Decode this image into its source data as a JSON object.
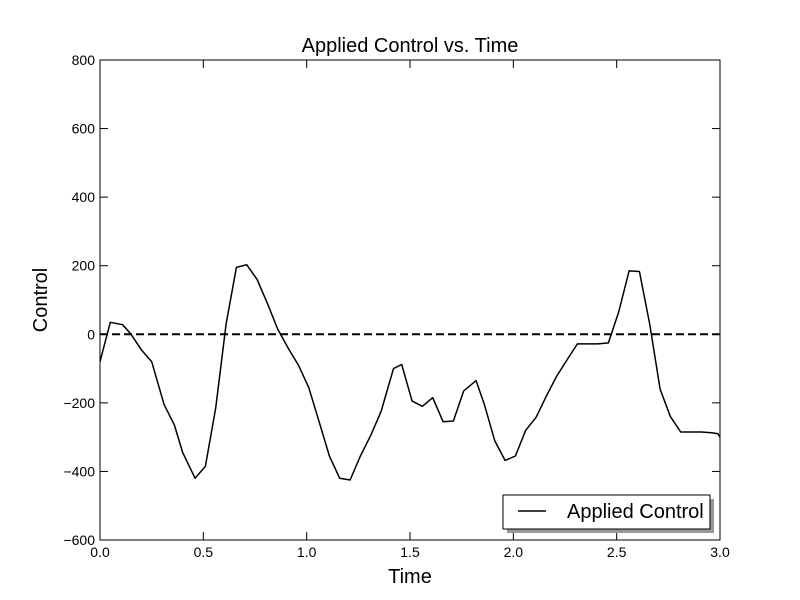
{
  "chart_data": {
    "type": "line",
    "title": "Applied Control vs. Time",
    "xlabel": "Time",
    "ylabel": "Control",
    "xlim": [
      0.0,
      3.0
    ],
    "ylim": [
      -600,
      800
    ],
    "grid": false,
    "legend_position": "lower-right",
    "x_ticks": [
      "0.0",
      "0.5",
      "1.0",
      "1.5",
      "2.0",
      "2.5",
      "3.0"
    ],
    "y_ticks": [
      "800",
      "600",
      "400",
      "200",
      "0",
      "−200",
      "−400",
      "−600"
    ],
    "reference_line": {
      "y": 0,
      "style": "dashed",
      "color": "#000000"
    },
    "series": [
      {
        "name": "Applied Control",
        "color": "#000000",
        "x": [
          0.0,
          0.05,
          0.11,
          0.15,
          0.2,
          0.25,
          0.31,
          0.36,
          0.4,
          0.46,
          0.51,
          0.56,
          0.61,
          0.66,
          0.71,
          0.76,
          0.81,
          0.86,
          0.91,
          0.96,
          1.01,
          1.06,
          1.11,
          1.16,
          1.21,
          1.26,
          1.31,
          1.36,
          1.42,
          1.46,
          1.51,
          1.56,
          1.61,
          1.66,
          1.71,
          1.76,
          1.82,
          1.86,
          1.91,
          1.96,
          2.01,
          2.06,
          2.11,
          2.16,
          2.21,
          2.27,
          2.31,
          2.36,
          2.41,
          2.46,
          2.51,
          2.56,
          2.61,
          2.66,
          2.71,
          2.76,
          2.81,
          2.86,
          2.91,
          2.96,
          2.99,
          3.0
        ],
        "y": [
          -80,
          35,
          28,
          0,
          -45,
          -80,
          -205,
          -265,
          -345,
          -420,
          -385,
          -215,
          30,
          195,
          203,
          160,
          90,
          15,
          -40,
          -90,
          -155,
          -255,
          -355,
          -420,
          -425,
          -355,
          -295,
          -225,
          -100,
          -88,
          -195,
          -210,
          -185,
          -255,
          -253,
          -165,
          -135,
          -205,
          -310,
          -368,
          -355,
          -280,
          -242,
          -180,
          -122,
          -65,
          -28,
          -28,
          -28,
          -25,
          65,
          185,
          183,
          30,
          -160,
          -240,
          -285,
          -285,
          -285,
          -287,
          -290,
          -300
        ]
      }
    ]
  }
}
